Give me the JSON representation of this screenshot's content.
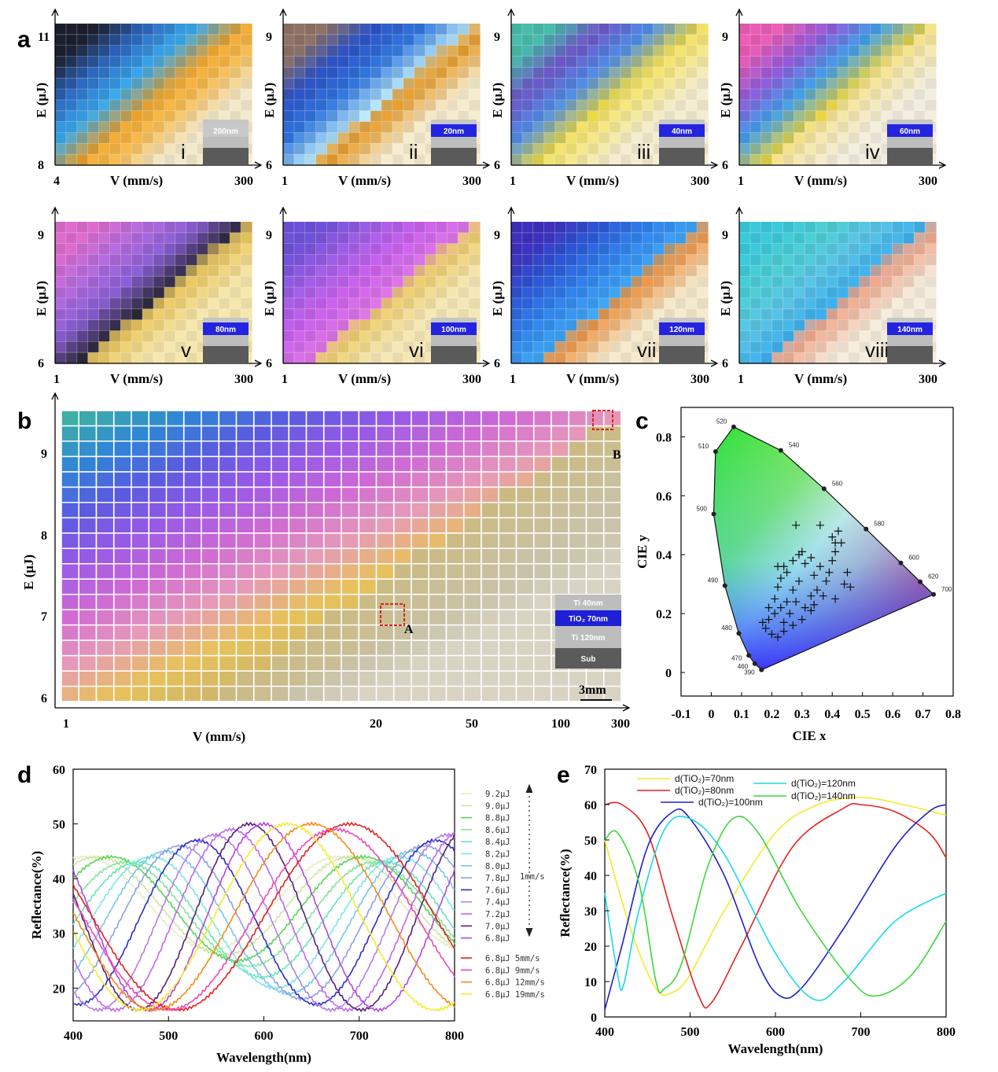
{
  "panels": {
    "a": {
      "label": "a",
      "xlabel": "V (mm/s)",
      "ylabel": "E (μJ)",
      "subplots": [
        {
          "roman": "i",
          "x_min": "4",
          "x_max": "300",
          "y_min": "8",
          "y_max": "11",
          "thickness": "200nm",
          "film_color": "#c9c9c9",
          "gradient": [
            "#1b1e2c",
            "#2b62b8",
            "#37a5e6",
            "#e89b22",
            "#f0b54a",
            "#ece3c6"
          ],
          "step": 0.22
        },
        {
          "roman": "ii",
          "x_min": "1",
          "x_max": "300",
          "y_min": "6",
          "y_max": "9",
          "thickness": "20nm",
          "film_color": "#2424e0",
          "gradient": [
            "#8b6f63",
            "#2b4fc0",
            "#2f74d8",
            "#b9e6f4",
            "#e1992c",
            "#efe5c8"
          ],
          "step": 0.32
        },
        {
          "roman": "iii",
          "x_min": "1",
          "x_max": "300",
          "y_min": "6",
          "y_max": "9",
          "thickness": "40nm",
          "film_color": "#2424e0",
          "gradient": [
            "#46b7a6",
            "#6a54c2",
            "#4c8be0",
            "#e6d340",
            "#efe07a",
            "#ede6c9"
          ],
          "step": 0.3
        },
        {
          "roman": "iv",
          "x_min": "1",
          "x_max": "300",
          "y_min": "6",
          "y_max": "9",
          "thickness": "60nm",
          "film_color": "#2424e0",
          "gradient": [
            "#e45bb0",
            "#8e58d4",
            "#3e9be3",
            "#e7cf3d",
            "#efe0a0",
            "#ece7d8"
          ],
          "step": 0.32
        },
        {
          "roman": "v",
          "x_min": "1",
          "x_max": "300",
          "y_min": "6",
          "y_max": "9",
          "thickness": "80nm",
          "film_color": "#2424e0",
          "gradient": [
            "#d769c8",
            "#b068d8",
            "#865cce",
            "#252530",
            "#e6c35e",
            "#efe1a8"
          ],
          "step": 0.36
        },
        {
          "roman": "vi",
          "x_min": "1",
          "x_max": "300",
          "y_min": "6",
          "y_max": "9",
          "thickness": "100nm",
          "film_color": "#2424e0",
          "gradient": [
            "#6b4fd2",
            "#9c5ce0",
            "#c45ee6",
            "#d974e0",
            "#e8c86a",
            "#efe1b0"
          ],
          "step": 0.36
        },
        {
          "roman": "vii",
          "x_min": "1",
          "x_max": "300",
          "y_min": "6",
          "y_max": "9",
          "thickness": "120nm",
          "film_color": "#2424e0",
          "gradient": [
            "#3d2fb8",
            "#2b54cf",
            "#2f7fe6",
            "#3ea4ee",
            "#e69347",
            "#efe3c6"
          ],
          "step": 0.36
        },
        {
          "roman": "viii",
          "x_min": "1",
          "x_max": "300",
          "y_min": "6",
          "y_max": "9",
          "thickness": "140nm",
          "film_color": "#2424e0",
          "gradient": [
            "#39c4d6",
            "#4bc9cf",
            "#57bfe0",
            "#3aa9e6",
            "#e9a48a",
            "#efe6d6"
          ],
          "step": 0.36
        }
      ]
    },
    "b": {
      "label": "b",
      "xlabel": "V (mm/s)",
      "ylabel": "E (μJ)",
      "x_ticks": [
        "1",
        "20",
        "50",
        "100",
        "300"
      ],
      "y_ticks": [
        "6",
        "7",
        "8",
        "9"
      ],
      "point_A": "A",
      "point_B": "B",
      "stack": [
        {
          "text": "Ti    40nm",
          "color": "#bdbdbd"
        },
        {
          "text": "TiO₂  70nm",
          "color": "#1f1fd6"
        },
        {
          "text": "Ti    120nm",
          "color": "#bdbdbd"
        },
        {
          "text": "Sub",
          "color": "#5b5b5b"
        }
      ],
      "scale_bar": "3mm"
    },
    "c": {
      "label": "c",
      "xlabel": "CIE x",
      "ylabel": "CIE y",
      "x_ticks": [
        "-0.1",
        "0",
        "0.1",
        "0.2",
        "0.3",
        "0.4",
        "0.5",
        "0.6",
        "0.7",
        "0.8"
      ],
      "y_ticks": [
        "0",
        "0.2",
        "0.4",
        "0.6",
        "0.8"
      ],
      "wavelength_labels": [
        {
          "nm": "390",
          "x": 0.166,
          "y": 0.009
        },
        {
          "nm": "460",
          "x": 0.144,
          "y": 0.03
        },
        {
          "nm": "470",
          "x": 0.124,
          "y": 0.058
        },
        {
          "nm": "480",
          "x": 0.091,
          "y": 0.133
        },
        {
          "nm": "490",
          "x": 0.045,
          "y": 0.295
        },
        {
          "nm": "500",
          "x": 0.008,
          "y": 0.538
        },
        {
          "nm": "510",
          "x": 0.014,
          "y": 0.75
        },
        {
          "nm": "520",
          "x": 0.074,
          "y": 0.834
        },
        {
          "nm": "540",
          "x": 0.23,
          "y": 0.754
        },
        {
          "nm": "560",
          "x": 0.373,
          "y": 0.624
        },
        {
          "nm": "580",
          "x": 0.512,
          "y": 0.487
        },
        {
          "nm": "600",
          "x": 0.627,
          "y": 0.372
        },
        {
          "nm": "620",
          "x": 0.691,
          "y": 0.308
        },
        {
          "nm": "700",
          "x": 0.735,
          "y": 0.265
        }
      ]
    },
    "d": {
      "label": "d",
      "xlabel": "Wavelength(nm)",
      "ylabel": "Reflectance(%)",
      "legend_speed_note": "1mm/s"
    },
    "e": {
      "label": "e",
      "xlabel": "Wavelength(nm)",
      "ylabel": "Reflectance(%)"
    }
  },
  "chart_data": [
    {
      "type": "scatter",
      "panel": "c",
      "xlabel": "CIE x",
      "ylabel": "CIE y",
      "xlim": [
        -0.1,
        0.8
      ],
      "ylim": [
        0,
        0.9
      ],
      "points": [
        [
          0.28,
          0.5
        ],
        [
          0.36,
          0.5
        ],
        [
          0.4,
          0.46
        ],
        [
          0.42,
          0.48
        ],
        [
          0.41,
          0.44
        ],
        [
          0.43,
          0.44
        ],
        [
          0.41,
          0.41
        ],
        [
          0.4,
          0.38
        ],
        [
          0.39,
          0.34
        ],
        [
          0.44,
          0.3
        ],
        [
          0.45,
          0.34
        ],
        [
          0.46,
          0.29
        ],
        [
          0.41,
          0.25
        ],
        [
          0.37,
          0.26
        ],
        [
          0.34,
          0.23
        ],
        [
          0.33,
          0.21
        ],
        [
          0.3,
          0.18
        ],
        [
          0.27,
          0.16
        ],
        [
          0.24,
          0.14
        ],
        [
          0.22,
          0.12
        ],
        [
          0.2,
          0.13
        ],
        [
          0.18,
          0.15
        ],
        [
          0.17,
          0.17
        ],
        [
          0.19,
          0.22
        ],
        [
          0.21,
          0.25
        ],
        [
          0.22,
          0.29
        ],
        [
          0.23,
          0.32
        ],
        [
          0.24,
          0.36
        ],
        [
          0.25,
          0.34
        ],
        [
          0.27,
          0.38
        ],
        [
          0.29,
          0.4
        ],
        [
          0.3,
          0.41
        ],
        [
          0.31,
          0.37
        ],
        [
          0.33,
          0.39
        ],
        [
          0.29,
          0.31
        ],
        [
          0.27,
          0.28
        ],
        [
          0.25,
          0.24
        ],
        [
          0.23,
          0.22
        ],
        [
          0.21,
          0.2
        ],
        [
          0.19,
          0.18
        ],
        [
          0.24,
          0.17
        ],
        [
          0.26,
          0.2
        ],
        [
          0.28,
          0.24
        ],
        [
          0.31,
          0.22
        ],
        [
          0.33,
          0.26
        ],
        [
          0.35,
          0.28
        ],
        [
          0.38,
          0.31
        ],
        [
          0.36,
          0.36
        ],
        [
          0.34,
          0.33
        ],
        [
          0.22,
          0.36
        ]
      ]
    },
    {
      "type": "line",
      "panel": "d",
      "xlabel": "Wavelength(nm)",
      "ylabel": "Reflectance(%)",
      "xlim": [
        400,
        800
      ],
      "ylim": [
        14,
        60
      ],
      "x_ticks": [
        400,
        500,
        600,
        700,
        800
      ],
      "y_ticks": [
        20,
        30,
        40,
        50,
        60
      ],
      "series": [
        {
          "name": "9.2μJ",
          "color": "#e2eec4",
          "min_nm": 545,
          "max_nm": 412,
          "lo": 27,
          "hi": 44
        },
        {
          "name": "9.0μJ",
          "color": "#cfe6a0",
          "min_nm": 558,
          "max_nm": 425,
          "lo": 26,
          "hi": 44
        },
        {
          "name": "8.8μJ",
          "color": "#57d657",
          "min_nm": 572,
          "max_nm": 440,
          "lo": 25,
          "hi": 44
        },
        {
          "name": "8.6μJ",
          "color": "#86e49d",
          "min_nm": 585,
          "max_nm": 455,
          "lo": 24,
          "hi": 43
        },
        {
          "name": "8.4μJ",
          "color": "#67e5b8",
          "min_nm": 598,
          "max_nm": 468,
          "lo": 22,
          "hi": 43
        },
        {
          "name": "8.2μJ",
          "color": "#7ee6e6",
          "min_nm": 612,
          "max_nm": 482,
          "lo": 20,
          "hi": 44
        },
        {
          "name": "8.0μJ",
          "color": "#79c6ef",
          "min_nm": 626,
          "max_nm": 497,
          "lo": 19,
          "hi": 45
        },
        {
          "name": "7.8μJ",
          "color": "#8e9fe6",
          "min_nm": 640,
          "max_nm": 512,
          "lo": 18,
          "hi": 46
        },
        {
          "name": "7.6μJ",
          "color": "#2b2ec9",
          "min_nm": 655,
          "max_nm": 530,
          "lo": 17,
          "hi": 47
        },
        {
          "name": "7.4μJ",
          "color": "#b47ee6",
          "min_nm": 670,
          "max_nm": 548,
          "lo": 16,
          "hi": 48
        },
        {
          "name": "7.2μJ",
          "color": "#c266f0",
          "min_nm": 688,
          "max_nm": 566,
          "lo": 16,
          "hi": 49
        },
        {
          "name": "7.0μJ",
          "color": "#5a1f7a",
          "min_nm": 702,
          "max_nm": 585,
          "lo": 16,
          "hi": 50
        },
        {
          "name": "6.8μJ",
          "color": "#b545e0",
          "min_nm": 720,
          "max_nm": 600,
          "lo": 16,
          "hi": 50
        },
        {
          "name": "6.8μJ 5mm/s",
          "color": "#e52222",
          "min_nm": 510,
          "max_nm": 690,
          "lo": 16,
          "hi": 50
        },
        {
          "name": "6.8μJ 9mm/s",
          "color": "#f047b6",
          "min_nm": 500,
          "max_nm": 675,
          "lo": 16,
          "hi": 49
        },
        {
          "name": "6.8μJ 12mm/s",
          "color": "#f58a1c",
          "min_nm": 485,
          "max_nm": 650,
          "lo": 16,
          "hi": 50
        },
        {
          "name": "6.8μJ 19mm/s",
          "color": "#f2ec2a",
          "min_nm": 470,
          "max_nm": 625,
          "lo": 16,
          "hi": 50
        }
      ]
    },
    {
      "type": "line",
      "panel": "e",
      "xlabel": "Wavelength(nm)",
      "ylabel": "Reflectance(%)",
      "xlim": [
        400,
        800
      ],
      "ylim": [
        0,
        70
      ],
      "x_ticks": [
        400,
        500,
        600,
        700,
        800
      ],
      "y_ticks": [
        0,
        10,
        20,
        30,
        40,
        50,
        60,
        70
      ],
      "series": [
        {
          "name": "d(TiO₂)=70nm",
          "color": "#f2ec2a",
          "points": [
            [
              400,
              50
            ],
            [
              430,
              25
            ],
            [
              460,
              8
            ],
            [
              480,
              7
            ],
            [
              500,
              12
            ],
            [
              540,
              30
            ],
            [
              600,
              52
            ],
            [
              650,
              60
            ],
            [
              700,
              62
            ],
            [
              750,
              60
            ],
            [
              800,
              57
            ]
          ]
        },
        {
          "name": "d(TiO₂)=80nm",
          "color": "#e52222",
          "points": [
            [
              400,
              60
            ],
            [
              420,
              60
            ],
            [
              450,
              52
            ],
            [
              480,
              28
            ],
            [
              510,
              6
            ],
            [
              525,
              4
            ],
            [
              560,
              20
            ],
            [
              620,
              48
            ],
            [
              680,
              59
            ],
            [
              700,
              60
            ],
            [
              740,
              58
            ],
            [
              780,
              52
            ],
            [
              800,
              45
            ]
          ]
        },
        {
          "name": "d(TiO₂)=100nm",
          "color": "#1f1fd0",
          "points": [
            [
              400,
              2
            ],
            [
              420,
              20
            ],
            [
              450,
              48
            ],
            [
              480,
              58
            ],
            [
              500,
              56
            ],
            [
              540,
              40
            ],
            [
              580,
              15
            ],
            [
              605,
              6
            ],
            [
              630,
              8
            ],
            [
              680,
              25
            ],
            [
              740,
              48
            ],
            [
              780,
              58
            ],
            [
              800,
              60
            ]
          ]
        },
        {
          "name": "d(TiO₂)=120nm",
          "color": "#19d8e6",
          "points": [
            [
              400,
              35
            ],
            [
              415,
              12
            ],
            [
              422,
              9
            ],
            [
              440,
              30
            ],
            [
              470,
              53
            ],
            [
              500,
              56
            ],
            [
              540,
              46
            ],
            [
              600,
              18
            ],
            [
              645,
              5
            ],
            [
              680,
              10
            ],
            [
              740,
              27
            ],
            [
              800,
              35
            ]
          ]
        },
        {
          "name": "d(TiO₂)=140nm",
          "color": "#3ad83a",
          "points": [
            [
              400,
              50
            ],
            [
              415,
              52
            ],
            [
              440,
              38
            ],
            [
              460,
              10
            ],
            [
              470,
              8
            ],
            [
              490,
              15
            ],
            [
              520,
              42
            ],
            [
              550,
              56
            ],
            [
              580,
              52
            ],
            [
              630,
              30
            ],
            [
              690,
              10
            ],
            [
              720,
              6
            ],
            [
              760,
              12
            ],
            [
              800,
              27
            ]
          ]
        }
      ]
    }
  ]
}
